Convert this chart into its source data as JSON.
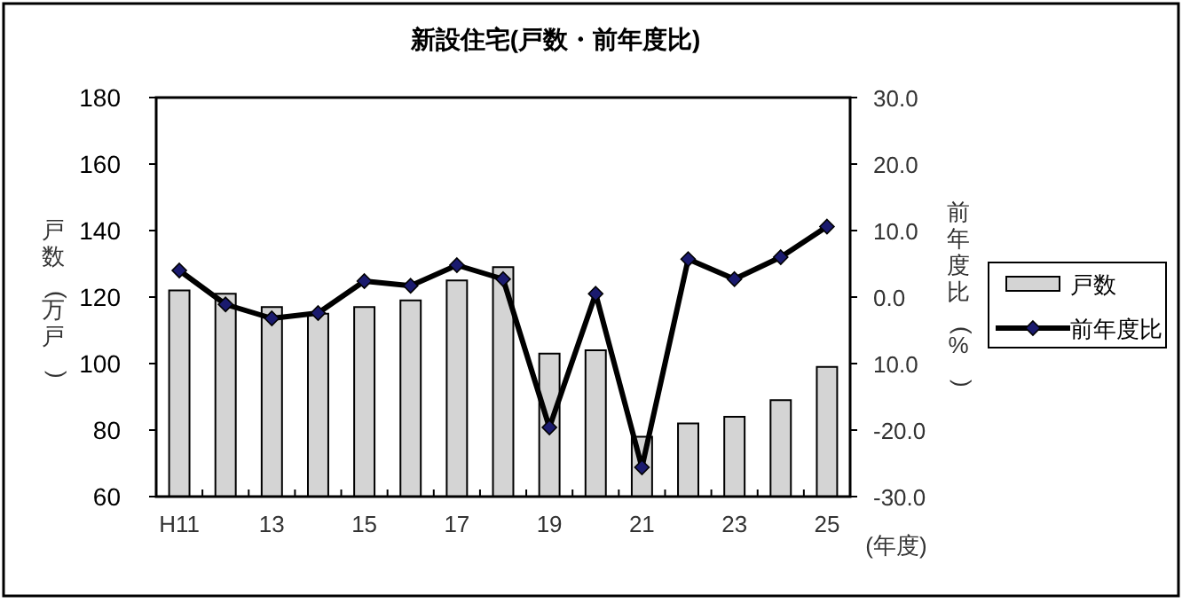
{
  "chart_data": {
    "type": "bar",
    "title": "新設住宅(戸数・前年度比)",
    "xlabel": "(年度)",
    "ylabel": "戸数(万戸)",
    "y2label": "前年度比(%)",
    "categories": [
      "H11",
      null,
      "13",
      null,
      "15",
      null,
      "17",
      null,
      "19",
      null,
      "21",
      null,
      "23",
      null,
      "25"
    ],
    "series": [
      {
        "name": "戸数",
        "color": "#d4d4d4",
        "values": [
          122,
          121,
          117,
          115,
          117,
          119,
          125,
          129,
          103,
          104,
          78,
          82,
          84,
          89,
          99
        ]
      },
      {
        "name": "前年度比",
        "type": "line",
        "axis": "y2",
        "color": "#000000",
        "marker": "diamond",
        "values": [
          4.0,
          -1.1,
          -3.2,
          -2.4,
          2.4,
          1.7,
          4.8,
          2.7,
          -19.6,
          0.5,
          -25.6,
          5.7,
          2.7,
          6.0,
          10.6
        ]
      }
    ],
    "ylim": [
      60,
      180
    ],
    "yticks": [
      60,
      80,
      100,
      120,
      140,
      160,
      180
    ],
    "y2lim": [
      -30,
      30
    ],
    "y2ticks": [
      {
        "value": -30,
        "label": "-30.0"
      },
      {
        "value": -20,
        "label": "-20.0"
      },
      {
        "value": -10,
        "label": "10.0"
      },
      {
        "value": 0,
        "label": "0.0"
      },
      {
        "value": 10,
        "label": "10.0"
      },
      {
        "value": 20,
        "label": "20.0"
      },
      {
        "value": 30,
        "label": "30.0"
      }
    ],
    "legend": "right",
    "grid": false
  }
}
